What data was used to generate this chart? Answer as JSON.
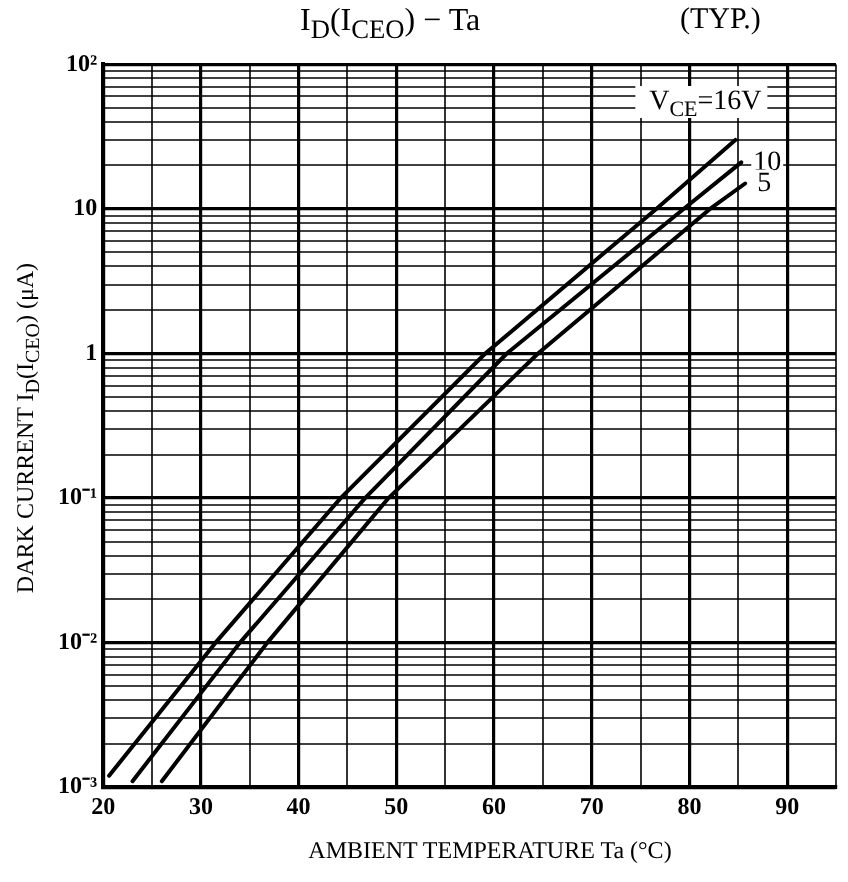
{
  "chart_data": {
    "type": "line",
    "title": "I$_{D}$(I$_{CEO}$)  −  Ta",
    "subtitle": "(TYP.)",
    "xlabel": "AMBIENT TEMPERATURE  Ta  (°C)",
    "ylabel": "DARK CURRENT  I$_{D}$(I$_{CEO}$)  (μA)",
    "log": "y",
    "grid": true,
    "legend": false,
    "marker": "none",
    "line_style": "solid",
    "xlim": [
      20,
      95
    ],
    "ylim": [
      0.001,
      100
    ],
    "xticks": [
      20,
      {
        "value": 25,
        "label": null
      },
      30,
      {
        "value": 35,
        "label": null
      },
      40,
      {
        "value": 45,
        "label": null
      },
      50,
      {
        "value": 55,
        "label": null
      },
      60,
      {
        "value": 65,
        "label": null
      },
      70,
      {
        "value": 75,
        "label": null
      },
      80,
      {
        "value": 85,
        "label": null
      },
      90,
      {
        "value": 95,
        "label": null
      }
    ],
    "yticks": [
      {
        "value": 0.001,
        "label": "10⁻³"
      },
      {
        "value": 0.002,
        "label": null
      },
      {
        "value": 0.003,
        "label": null
      },
      {
        "value": 0.004,
        "label": null
      },
      {
        "value": 0.005,
        "label": null
      },
      {
        "value": 0.006,
        "label": null
      },
      {
        "value": 0.007,
        "label": null
      },
      {
        "value": 0.008,
        "label": null
      },
      {
        "value": 0.009,
        "label": null
      },
      {
        "value": 0.01,
        "label": "10⁻²"
      },
      {
        "value": 0.02,
        "label": null
      },
      {
        "value": 0.03,
        "label": null
      },
      {
        "value": 0.04,
        "label": null
      },
      {
        "value": 0.05,
        "label": null
      },
      {
        "value": 0.06,
        "label": null
      },
      {
        "value": 0.07,
        "label": null
      },
      {
        "value": 0.08,
        "label": null
      },
      {
        "value": 0.09,
        "label": null
      },
      {
        "value": 0.1,
        "label": "10⁻¹"
      },
      {
        "value": 0.2,
        "label": null
      },
      {
        "value": 0.3,
        "label": null
      },
      {
        "value": 0.4,
        "label": null
      },
      {
        "value": 0.5,
        "label": null
      },
      {
        "value": 0.6,
        "label": null
      },
      {
        "value": 0.7,
        "label": null
      },
      {
        "value": 0.8,
        "label": null
      },
      {
        "value": 0.9,
        "label": null
      },
      1,
      {
        "value": 2,
        "label": null
      },
      {
        "value": 3,
        "label": null
      },
      {
        "value": 4,
        "label": null
      },
      {
        "value": 5,
        "label": null
      },
      {
        "value": 6,
        "label": null
      },
      {
        "value": 7,
        "label": null
      },
      {
        "value": 8,
        "label": null
      },
      {
        "value": 9,
        "label": null
      },
      10,
      {
        "value": 20,
        "label": null
      },
      {
        "value": 30,
        "label": null
      },
      {
        "value": 40,
        "label": null
      },
      {
        "value": 50,
        "label": null
      },
      {
        "value": 60,
        "label": null
      },
      {
        "value": 70,
        "label": null
      },
      {
        "value": 80,
        "label": null
      },
      {
        "value": 90,
        "label": null
      },
      {
        "value": 100,
        "label": "10²"
      }
    ],
    "series": [
      {
        "name": "V$_{CE}$=16V",
        "color": "#000000",
        "x": [
          20.6,
          31.5,
          44.3,
          59.1,
          76.6,
          84.7
        ],
        "values": [
          0.0012,
          0.01,
          0.1,
          1,
          10,
          30
        ]
      },
      {
        "name": "10",
        "color": "#000000",
        "x": [
          23,
          34,
          46.8,
          61.3,
          79.4,
          85.3
        ],
        "values": [
          0.0011,
          0.01,
          0.1,
          1,
          10,
          21
        ]
      },
      {
        "name": "5",
        "color": "#000000",
        "x": [
          26,
          36.8,
          49.2,
          64.5,
          82.1,
          85.7
        ],
        "values": [
          0.0011,
          0.01,
          0.1,
          1,
          10,
          15
        ]
      }
    ]
  }
}
